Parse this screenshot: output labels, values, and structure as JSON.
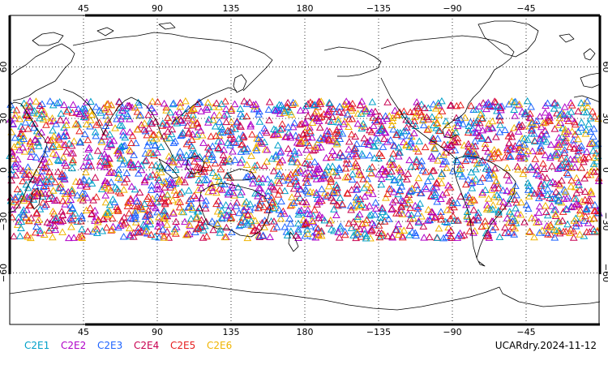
{
  "map": {
    "projection": "equirectangular",
    "lon_range": [
      0,
      360
    ],
    "lat_range": [
      -90,
      90
    ],
    "top_lon_labels": [
      "45",
      "90",
      "135",
      "180",
      "−135",
      "−90",
      "−45"
    ],
    "bottom_lon_labels": [
      "45",
      "90",
      "135",
      "180",
      "−135",
      "−90",
      "−45"
    ],
    "lat_labels": [
      "60",
      "30",
      "0",
      "−30",
      "−60"
    ],
    "grid_lon_values": [
      45,
      90,
      135,
      180,
      225,
      270,
      315
    ],
    "grid_lat_values": [
      60,
      30,
      0,
      -30,
      -60
    ],
    "grid": true,
    "observation_symbol": "open-triangle",
    "observation_lat_band": [
      -40,
      40
    ]
  },
  "legend": {
    "items": [
      {
        "label": "C2E1",
        "color": "#00a0c8"
      },
      {
        "label": "C2E2",
        "color": "#b000c8"
      },
      {
        "label": "C2E3",
        "color": "#1e64ff"
      },
      {
        "label": "C2E4",
        "color": "#c80050"
      },
      {
        "label": "C2E5",
        "color": "#e61e1e"
      },
      {
        "label": "C2E6",
        "color": "#f0b400"
      }
    ]
  },
  "caption": "UCARdry.2024-11-12"
}
